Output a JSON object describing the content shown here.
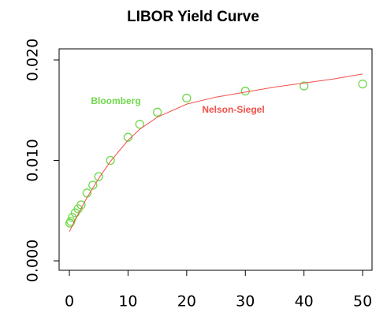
{
  "chart_data": {
    "type": "scatter",
    "title": "LIBOR Yield Curve",
    "series": [
      {
        "name": "Bloomberg",
        "type": "scatter",
        "color": "#6fd84a",
        "x": [
          0.08,
          0.25,
          0.5,
          1,
          1.5,
          2,
          3,
          4,
          5,
          7,
          10,
          12,
          15,
          20,
          30,
          40,
          50
        ],
        "values": [
          0.00376,
          0.00392,
          0.00431,
          0.00478,
          0.00518,
          0.00557,
          0.00675,
          0.00753,
          0.00839,
          0.01,
          0.0123,
          0.0136,
          0.0148,
          0.0162,
          0.0169,
          0.0174,
          0.0176
        ]
      },
      {
        "name": "Nelson-Siegel",
        "type": "line",
        "color": "#f0504a",
        "x": [
          0,
          1,
          2,
          3,
          5,
          7,
          10,
          12,
          15,
          20,
          25,
          30,
          35,
          40,
          45,
          50
        ],
        "values": [
          0.0029,
          0.0041,
          0.0052,
          0.0063,
          0.0082,
          0.0099,
          0.012,
          0.0131,
          0.0143,
          0.0156,
          0.0163,
          0.0168,
          0.0173,
          0.0177,
          0.0181,
          0.0186
        ]
      }
    ],
    "xlim": [
      -1.75,
      51.6
    ],
    "ylim": [
      -0.00094,
      0.0211
    ],
    "xticks": [
      0,
      10,
      20,
      30,
      40,
      50
    ],
    "yticks": [
      {
        "value": 0,
        "label": "0.000"
      },
      {
        "value": 0.01,
        "label": "0.010"
      },
      {
        "value": 0.02,
        "label": "0.020"
      }
    ]
  }
}
